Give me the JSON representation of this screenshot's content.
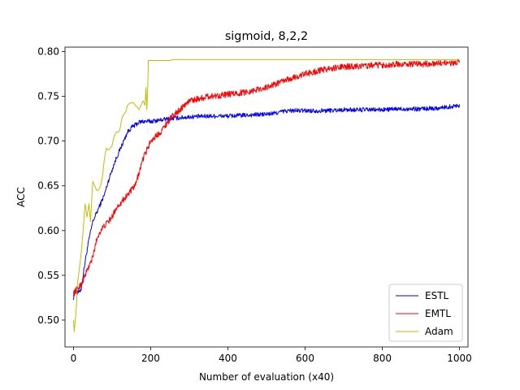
{
  "chart_data": {
    "type": "line",
    "title": "sigmoid, 8,2,2",
    "xlabel": "Number of evaluation (x40)",
    "ylabel": "ACC",
    "xlim": [
      -22,
      1022
    ],
    "ylim": [
      0.47,
      0.805
    ],
    "xticks": [
      0,
      200,
      400,
      600,
      800,
      1000
    ],
    "yticks": [
      0.5,
      0.55,
      0.6,
      0.65,
      0.7,
      0.75,
      0.8
    ],
    "xtick_labels": [
      "0",
      "200",
      "400",
      "600",
      "800",
      "1000"
    ],
    "ytick_labels": [
      "0.50",
      "0.55",
      "0.60",
      "0.65",
      "0.70",
      "0.75",
      "0.80"
    ],
    "grid": false,
    "legend_position": "lower-right",
    "series": [
      {
        "name": "ESTL",
        "color": "#0000ff",
        "noise": 0.0025,
        "x": [
          0,
          5,
          10,
          15,
          20,
          25,
          30,
          40,
          50,
          60,
          70,
          80,
          90,
          100,
          110,
          120,
          130,
          140,
          150,
          160,
          170,
          180,
          190,
          200,
          250,
          300,
          350,
          400,
          450,
          500,
          520,
          540,
          560,
          600,
          650,
          700,
          750,
          800,
          850,
          900,
          950,
          1000
        ],
        "values": [
          0.525,
          0.535,
          0.53,
          0.532,
          0.535,
          0.55,
          0.565,
          0.59,
          0.61,
          0.62,
          0.63,
          0.64,
          0.655,
          0.668,
          0.68,
          0.69,
          0.7,
          0.71,
          0.715,
          0.718,
          0.721,
          0.722,
          0.722,
          0.722,
          0.725,
          0.727,
          0.728,
          0.728,
          0.729,
          0.73,
          0.731,
          0.733,
          0.734,
          0.734,
          0.734,
          0.735,
          0.735,
          0.735,
          0.736,
          0.736,
          0.737,
          0.74
        ]
      },
      {
        "name": "EMTL",
        "color": "#ff0000",
        "noise": 0.0035,
        "x": [
          0,
          10,
          20,
          30,
          40,
          50,
          60,
          70,
          80,
          90,
          100,
          110,
          120,
          130,
          140,
          150,
          160,
          170,
          180,
          190,
          200,
          225,
          250,
          275,
          300,
          350,
          400,
          450,
          500,
          550,
          600,
          650,
          700,
          750,
          800,
          850,
          900,
          950,
          1000
        ],
        "values": [
          0.53,
          0.535,
          0.54,
          0.55,
          0.56,
          0.57,
          0.59,
          0.6,
          0.605,
          0.61,
          0.615,
          0.625,
          0.63,
          0.635,
          0.64,
          0.645,
          0.65,
          0.665,
          0.68,
          0.69,
          0.7,
          0.71,
          0.725,
          0.735,
          0.745,
          0.75,
          0.752,
          0.755,
          0.76,
          0.768,
          0.775,
          0.78,
          0.783,
          0.784,
          0.785,
          0.786,
          0.786,
          0.787,
          0.788
        ]
      },
      {
        "name": "Adam",
        "color": "#bfbf00",
        "noise": 0.0,
        "x": [
          0,
          2,
          4,
          6,
          8,
          10,
          13,
          16,
          20,
          25,
          30,
          35,
          40,
          44,
          48,
          50,
          55,
          60,
          65,
          70,
          75,
          80,
          85,
          90,
          95,
          100,
          105,
          110,
          115,
          120,
          125,
          130,
          135,
          140,
          145,
          150,
          155,
          160,
          165,
          170,
          175,
          180,
          185,
          188,
          190,
          192,
          194,
          196,
          200,
          220,
          240,
          250,
          255,
          260,
          300,
          400,
          500,
          600,
          700,
          800,
          900,
          1000
        ],
        "values": [
          0.5,
          0.487,
          0.498,
          0.505,
          0.52,
          0.54,
          0.55,
          0.56,
          0.575,
          0.6,
          0.63,
          0.615,
          0.63,
          0.61,
          0.64,
          0.655,
          0.65,
          0.645,
          0.645,
          0.65,
          0.66,
          0.68,
          0.692,
          0.69,
          0.692,
          0.695,
          0.705,
          0.71,
          0.71,
          0.712,
          0.725,
          0.73,
          0.732,
          0.74,
          0.742,
          0.743,
          0.743,
          0.74,
          0.738,
          0.735,
          0.74,
          0.745,
          0.74,
          0.76,
          0.735,
          0.755,
          0.79,
          0.79,
          0.79,
          0.79,
          0.79,
          0.79,
          0.791,
          0.791,
          0.791,
          0.791,
          0.791,
          0.791,
          0.791,
          0.791,
          0.791,
          0.791
        ]
      }
    ]
  }
}
